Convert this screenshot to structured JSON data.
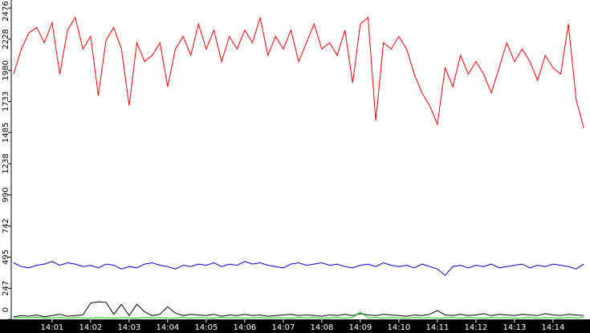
{
  "chart_data": {
    "type": "line",
    "x": [
      0,
      0.2,
      0.4,
      0.6,
      0.8,
      1,
      1.2,
      1.4,
      1.6,
      1.8,
      2,
      2.2,
      2.4,
      2.6,
      2.8,
      3,
      3.2,
      3.4,
      3.6,
      3.8,
      4,
      4.2,
      4.4,
      4.6,
      4.8,
      5,
      5.2,
      5.4,
      5.6,
      5.8,
      6,
      6.2,
      6.4,
      6.6,
      6.8,
      7,
      7.2,
      7.4,
      7.6,
      7.8,
      8,
      8.2,
      8.4,
      8.6,
      8.8,
      9,
      9.2,
      9.4,
      9.6,
      9.8,
      10,
      10.2,
      10.4,
      10.6,
      10.8,
      11,
      11.2,
      11.4,
      11.6,
      11.8,
      12,
      12.2,
      12.4,
      12.6,
      12.8,
      13,
      13.2,
      13.4,
      13.6,
      13.8,
      14,
      14.2,
      14.4,
      14.6,
      14.8
    ],
    "series": [
      {
        "color": "#ff0000",
        "values": [
          1950,
          2150,
          2280,
          2320,
          2200,
          2360,
          1950,
          2300,
          2400,
          2150,
          2250,
          1780,
          2220,
          2320,
          2150,
          1700,
          2200,
          2050,
          2100,
          2200,
          1850,
          2150,
          2250,
          2100,
          2350,
          2150,
          2300,
          2050,
          2250,
          2150,
          2300,
          2200,
          2400,
          2100,
          2250,
          2150,
          2300,
          2050,
          2200,
          2350,
          2150,
          2200,
          2100,
          2300,
          1880,
          2350,
          2400,
          1580,
          2200,
          2150,
          2250,
          2150,
          1950,
          1800,
          1700,
          1550,
          2000,
          1850,
          2100,
          1950,
          2050,
          1950,
          1800,
          2000,
          2200,
          2050,
          2150,
          2050,
          1900,
          2100,
          2000,
          1950,
          2350,
          1750,
          1520
        ]
      },
      {
        "color": "#0000cc",
        "values": [
          450,
          420,
          410,
          430,
          440,
          460,
          430,
          450,
          440,
          420,
          430,
          410,
          440,
          430,
          400,
          420,
          410,
          440,
          450,
          430,
          420,
          400,
          430,
          420,
          440,
          430,
          450,
          420,
          440,
          430,
          460,
          440,
          450,
          430,
          420,
          410,
          440,
          450,
          430,
          440,
          450,
          430,
          440,
          420,
          410,
          430,
          440,
          420,
          450,
          430,
          420,
          430,
          410,
          440,
          420,
          400,
          350,
          420,
          430,
          410,
          430,
          420,
          440,
          410,
          420,
          430,
          440,
          410,
          430,
          420,
          440,
          430,
          420,
          400,
          440
        ]
      },
      {
        "color": "#000000",
        "values": [
          20,
          30,
          25,
          35,
          20,
          30,
          40,
          25,
          30,
          35,
          130,
          140,
          135,
          40,
          120,
          30,
          120,
          60,
          30,
          40,
          100,
          50,
          30,
          40,
          35,
          30,
          40,
          25,
          35,
          30,
          40,
          30,
          35,
          25,
          30,
          35,
          40,
          30,
          35,
          30,
          25,
          35,
          30,
          40,
          30,
          45,
          35,
          30,
          40,
          35,
          30,
          25,
          35,
          30,
          40,
          70,
          35,
          30,
          40,
          30,
          35,
          45,
          30,
          40,
          35,
          30,
          40,
          35,
          30,
          45,
          35,
          30,
          40,
          35,
          30
        ]
      },
      {
        "color": "#00cc00",
        "values": [
          10,
          15,
          12,
          18,
          10,
          12,
          15,
          10,
          14,
          12,
          10,
          15,
          12,
          10,
          14,
          12,
          10,
          15,
          12,
          14,
          10,
          12,
          15,
          10,
          14,
          12,
          10,
          15,
          12,
          14,
          10,
          12,
          15,
          10,
          14,
          12,
          10,
          15,
          12,
          14,
          10,
          12,
          15,
          10,
          14,
          60,
          12,
          15,
          10,
          14,
          12,
          10,
          15,
          12,
          14,
          10,
          12,
          15,
          10,
          14,
          12,
          10,
          15,
          12,
          14,
          10,
          12,
          15,
          10,
          14,
          12,
          10,
          15,
          12,
          14
        ]
      }
    ],
    "xlim": [
      -0.06,
      14.96
    ],
    "xticks": [
      {
        "value": 1,
        "label": "14:01"
      },
      {
        "value": 2,
        "label": "14:02"
      },
      {
        "value": 3,
        "label": "14:03"
      },
      {
        "value": 4,
        "label": "14:04"
      },
      {
        "value": 5,
        "label": "14:05"
      },
      {
        "value": 6,
        "label": "14:06"
      },
      {
        "value": 7,
        "label": "14:07"
      },
      {
        "value": 8,
        "label": "14:08"
      },
      {
        "value": 9,
        "label": "14:09"
      },
      {
        "value": 10,
        "label": "14:10"
      },
      {
        "value": 11,
        "label": "14:11"
      },
      {
        "value": 12,
        "label": "14:12"
      },
      {
        "value": 13,
        "label": "14:13"
      },
      {
        "value": 14,
        "label": "14:14"
      }
    ],
    "ylim": [
      0,
      2476
    ],
    "yticks": [
      0,
      247,
      495,
      742,
      990,
      1238,
      1485,
      1733,
      1980,
      2228,
      2476
    ]
  }
}
